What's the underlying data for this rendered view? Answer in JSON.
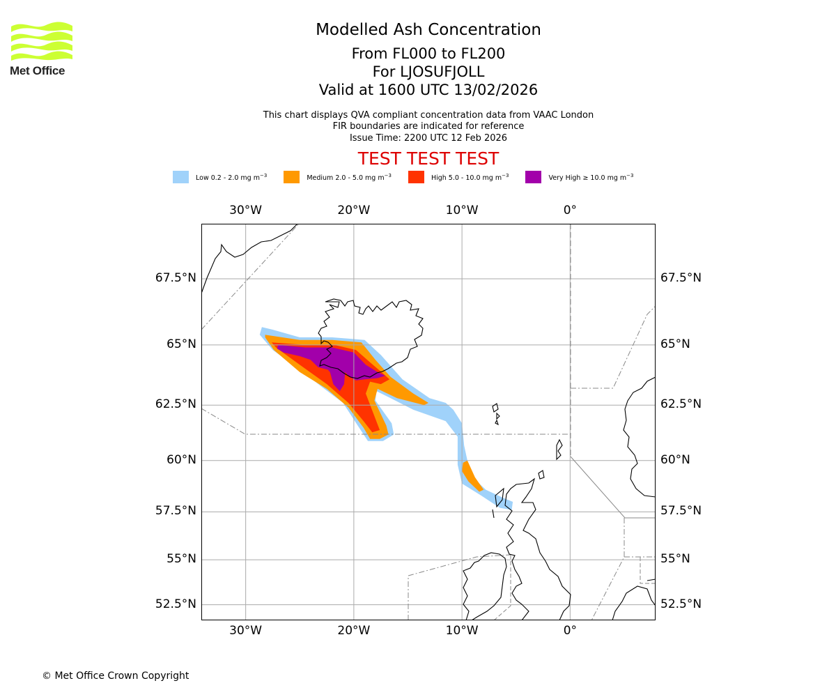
{
  "logo": {
    "icon": "met-office-waves-icon",
    "text": "Met Office",
    "color": "#ccff33"
  },
  "header": {
    "title": "Modelled Ash Concentration",
    "flight_levels": "From FL000 to FL200",
    "volcano": "For LJOSUFJOLL",
    "valid_time": "Valid at 1600 UTC 13/02/2026",
    "description": "This chart displays QVA compliant concentration data from VAAC London",
    "fir_note": "FIR boundaries are indicated for reference",
    "issue_time": "Issue Time: 2200 UTC 12 Feb 2026",
    "test_banner": "TEST TEST TEST",
    "test_color": "#dd0000"
  },
  "legend": [
    {
      "label": "Low 0.2 - 2.0 mg m",
      "unit_exp": "−3",
      "color": "#a0d2fa"
    },
    {
      "label": "Medium 2.0 - 5.0 mg m",
      "unit_exp": "−3",
      "color": "#ff9900"
    },
    {
      "label": "High 5.0 - 10.0 mg m",
      "unit_exp": "−3",
      "color": "#ff3300"
    },
    {
      "label": "Very High ≥ 10.0 mg m",
      "unit_exp": "−3",
      "color": "#a200aa"
    }
  ],
  "chart_data": {
    "type": "map",
    "title": "Modelled Ash Concentration",
    "projection": "plate-carree",
    "extent": {
      "lon": [
        -34.1,
        7.9
      ],
      "lat": [
        51.6,
        69.4
      ]
    },
    "grid": true,
    "x_ticks": [
      "30°W",
      "20°W",
      "10°W",
      "0°"
    ],
    "x_tick_values": [
      -30,
      -20,
      -10,
      0
    ],
    "y_ticks": [
      "67.5°N",
      "65°N",
      "62.5°N",
      "60°N",
      "57.5°N",
      "55°N",
      "52.5°N"
    ],
    "y_tick_values": [
      67.5,
      65,
      62.5,
      60,
      57.5,
      55,
      52.5
    ],
    "ash_levels": [
      {
        "level": "low",
        "color": "#a0d2fa",
        "polygons": [
          [
            [
              -28.5,
              65.7
            ],
            [
              -27.5,
              65.6
            ],
            [
              -25,
              65.3
            ],
            [
              -22,
              65.3
            ],
            [
              -19,
              65.2
            ],
            [
              -17.5,
              64.6
            ],
            [
              -15.5,
              63.6
            ],
            [
              -13,
              62.8
            ],
            [
              -11.5,
              62.6
            ],
            [
              -10.8,
              62.3
            ],
            [
              -10,
              61.7
            ],
            [
              -9.8,
              60.7
            ],
            [
              -9.2,
              59.3
            ],
            [
              -7.8,
              58.6
            ],
            [
              -6.2,
              58.2
            ],
            [
              -5.3,
              58.0
            ],
            [
              -5.4,
              57.6
            ],
            [
              -6.5,
              57.7
            ],
            [
              -8.2,
              58.3
            ],
            [
              -10,
              58.9
            ],
            [
              -10.4,
              59.8
            ],
            [
              -10.4,
              61.1
            ],
            [
              -11.5,
              61.8
            ],
            [
              -14.5,
              62.3
            ],
            [
              -16.6,
              62.8
            ],
            [
              -17.9,
              63.1
            ],
            [
              -18,
              62.7
            ],
            [
              -16.5,
              61.7
            ],
            [
              -16.3,
              61.2
            ],
            [
              -17.3,
              60.9
            ],
            [
              -18.7,
              60.9
            ],
            [
              -19.5,
              61.5
            ],
            [
              -21,
              62.6
            ],
            [
              -23,
              63.3
            ],
            [
              -25,
              64
            ],
            [
              -27.5,
              64.8
            ],
            [
              -28.7,
              65.4
            ]
          ]
        ]
      },
      {
        "level": "medium",
        "color": "#ff9900",
        "polygons": [
          [
            [
              -28.2,
              65.4
            ],
            [
              -25,
              65.2
            ],
            [
              -22,
              65.2
            ],
            [
              -19.3,
              65.1
            ],
            [
              -18,
              64.4
            ],
            [
              -16.6,
              63.7
            ],
            [
              -14.5,
              63.0
            ],
            [
              -13.1,
              62.6
            ],
            [
              -13.5,
              62.5
            ],
            [
              -16,
              62.8
            ],
            [
              -17.8,
              63.2
            ],
            [
              -18.1,
              62.7
            ],
            [
              -17,
              61.6
            ],
            [
              -16.8,
              61.2
            ],
            [
              -17.6,
              61.0
            ],
            [
              -18.5,
              61.0
            ],
            [
              -19.1,
              61.5
            ],
            [
              -20.5,
              62.4
            ],
            [
              -22.5,
              63.2
            ],
            [
              -25,
              63.9
            ],
            [
              -27.4,
              64.8
            ],
            [
              -28.2,
              65.3
            ]
          ],
          [
            [
              -9.9,
              59.9
            ],
            [
              -9.5,
              60.0
            ],
            [
              -8.8,
              59.2
            ],
            [
              -8.0,
              58.6
            ],
            [
              -8.4,
              58.5
            ],
            [
              -9.4,
              59.0
            ],
            [
              -10.0,
              59.5
            ]
          ]
        ]
      },
      {
        "level": "high",
        "color": "#ff3300",
        "polygons": [
          [
            [
              -27.6,
              65.1
            ],
            [
              -24.5,
              65.0
            ],
            [
              -21.8,
              65.0
            ],
            [
              -19.8,
              64.8
            ],
            [
              -18.5,
              64.3
            ],
            [
              -17.2,
              63.8
            ],
            [
              -16.7,
              63.6
            ],
            [
              -17.5,
              63.4
            ],
            [
              -18.5,
              63.5
            ],
            [
              -18.9,
              63.0
            ],
            [
              -18.0,
              61.9
            ],
            [
              -17.6,
              61.4
            ],
            [
              -18.3,
              61.3
            ],
            [
              -19.1,
              61.8
            ],
            [
              -20.5,
              62.6
            ],
            [
              -22.5,
              63.4
            ],
            [
              -25,
              64.2
            ],
            [
              -27.2,
              64.9
            ]
          ]
        ]
      },
      {
        "level": "very_high",
        "color": "#a200aa",
        "polygons": [
          [
            [
              -27,
              65.0
            ],
            [
              -24.5,
              64.9
            ],
            [
              -22.0,
              64.9
            ],
            [
              -20.0,
              64.7
            ],
            [
              -18.9,
              64.2
            ],
            [
              -17.8,
              63.9
            ],
            [
              -17.1,
              63.75
            ],
            [
              -17.8,
              63.65
            ],
            [
              -19.0,
              63.6
            ],
            [
              -19.8,
              63.55
            ],
            [
              -20.4,
              63.7
            ],
            [
              -20.8,
              63.9
            ],
            [
              -20.9,
              63.4
            ],
            [
              -21.3,
              63.1
            ],
            [
              -21.9,
              63.4
            ],
            [
              -22.2,
              63.9
            ],
            [
              -22.4,
              64.0
            ],
            [
              -23.3,
              64.1
            ],
            [
              -24.0,
              64.4
            ],
            [
              -25.0,
              64.55
            ],
            [
              -26.5,
              64.7
            ],
            [
              -27.1,
              64.85
            ]
          ]
        ]
      }
    ]
  },
  "footer": {
    "copyright": "© Met Office Crown Copyright"
  }
}
